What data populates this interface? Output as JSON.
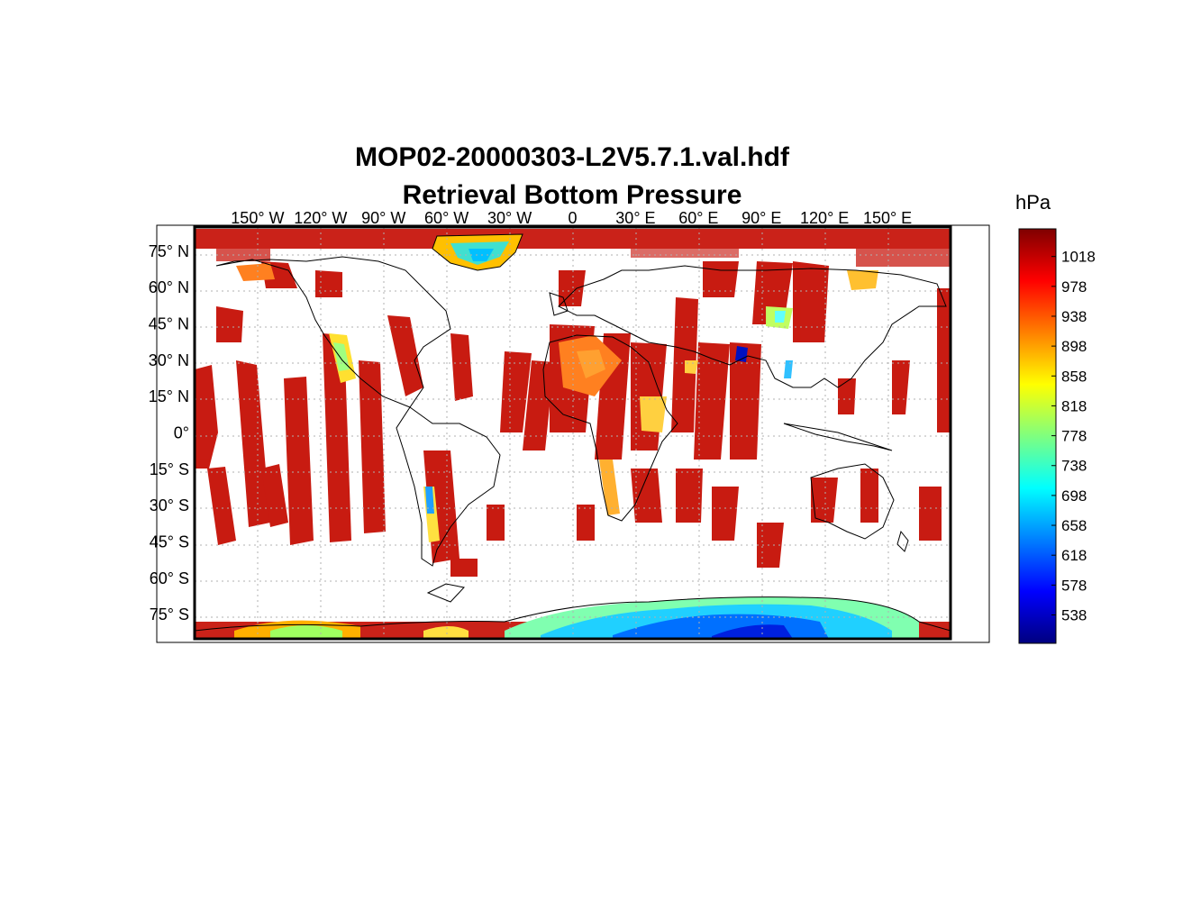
{
  "title_line1": "MOP02-20000303-L2V5.7.1.val.hdf",
  "title_line2": "Retrieval Bottom Pressure",
  "colorbar": {
    "unit": "hPa",
    "ticks": [
      "1018",
      "978",
      "938",
      "898",
      "858",
      "818",
      "778",
      "738",
      "698",
      "658",
      "618",
      "578",
      "538"
    ],
    "tick_values": [
      1018,
      978,
      938,
      898,
      858,
      818,
      778,
      738,
      698,
      658,
      618,
      578,
      538
    ],
    "range": [
      500,
      1055
    ],
    "colormap": [
      "#00007f",
      "#0000ff",
      "#007fff",
      "#00ffff",
      "#7fff7f",
      "#ffff00",
      "#ff7f00",
      "#ff0000",
      "#7f0000"
    ]
  },
  "lon_labels": [
    "150° W",
    "120° W",
    "90° W",
    "60° W",
    "30° W",
    "0",
    "30° E",
    "60° E",
    "90° E",
    "120° E",
    "150° E"
  ],
  "lon_values": [
    -150,
    -120,
    -90,
    -60,
    -30,
    0,
    30,
    60,
    90,
    120,
    150
  ],
  "lat_labels": [
    "75° N",
    "60° N",
    "45° N",
    "30° N",
    "15° N",
    "0°",
    "15° S",
    "30° S",
    "45° S",
    "60° S",
    "75° S"
  ],
  "lat_values": [
    75,
    60,
    45,
    30,
    15,
    0,
    -15,
    -30,
    -45,
    -60,
    -75
  ],
  "map_extent": {
    "lon": [
      -180,
      180
    ],
    "lat": [
      -85,
      85
    ]
  },
  "colors": {
    "frame": "#000000",
    "grid": "#b0b0b0",
    "coast": "#000000",
    "data_dominant": "#c40a00"
  }
}
